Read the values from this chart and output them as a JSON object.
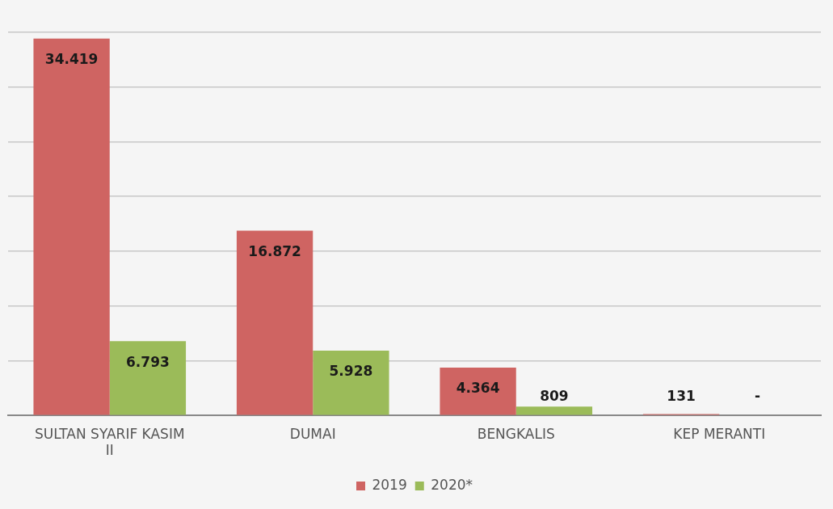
{
  "chart_data": {
    "type": "bar",
    "categories": [
      "SULTAN SYARIF KASIM II",
      "DUMAI",
      "BENGKALIS",
      "KEP MERANTI"
    ],
    "series": [
      {
        "name": "2019",
        "color": "#cf6462",
        "values": [
          34419,
          16872,
          4364,
          131
        ],
        "value_labels": [
          "34.419",
          "16.872",
          "4.364",
          "131"
        ]
      },
      {
        "name": "2020*",
        "color": "#9bbb59",
        "values": [
          6793,
          5928,
          809,
          null
        ],
        "value_labels": [
          "6.793",
          "5.928",
          "809",
          "-"
        ]
      }
    ],
    "ylim": [
      0,
      35000
    ],
    "yticks": [
      {
        "value": 0,
        "label": null
      },
      {
        "value": 5000,
        "label": null
      },
      {
        "value": 10000,
        "label": null
      },
      {
        "value": 15000,
        "label": null
      },
      {
        "value": 20000,
        "label": null
      },
      {
        "value": 25000,
        "label": null
      },
      {
        "value": 30000,
        "label": null
      },
      {
        "value": 35000,
        "label": null
      }
    ],
    "tick_labels": "x",
    "grid": "y",
    "legend": "bottom"
  }
}
